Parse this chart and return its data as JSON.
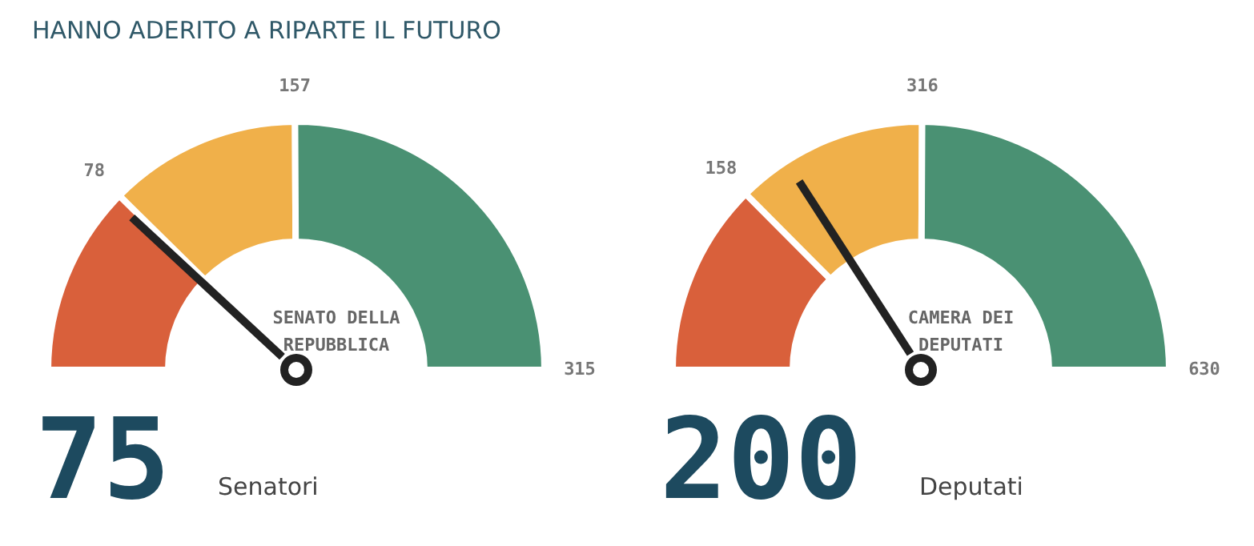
{
  "chart_data": [
    {
      "type": "donut",
      "title": "HANNO ADERITO A RIPARTE IL FUTURO",
      "subtitle": "SENATO DELLA REPUBBLICA",
      "categories": [
        null,
        null,
        null
      ],
      "values": [
        24.76,
        25.08,
        50.16
      ],
      "colors": [
        "#d9603b",
        "#f0b04a",
        "#4a9173"
      ],
      "annotations": [
        "78",
        "157",
        "315",
        "75",
        "Senatori"
      ]
    },
    {
      "type": "donut",
      "subtitle": "CAMERA DEI DEPUTATI",
      "categories": [
        null,
        null,
        null
      ],
      "values": [
        25.08,
        25.08,
        49.84
      ],
      "colors": [
        "#d9603b",
        "#f0b04a",
        "#4a9173"
      ],
      "annotations": [
        "158",
        "316",
        "630",
        "200",
        "Deputati"
      ]
    }
  ]
}
